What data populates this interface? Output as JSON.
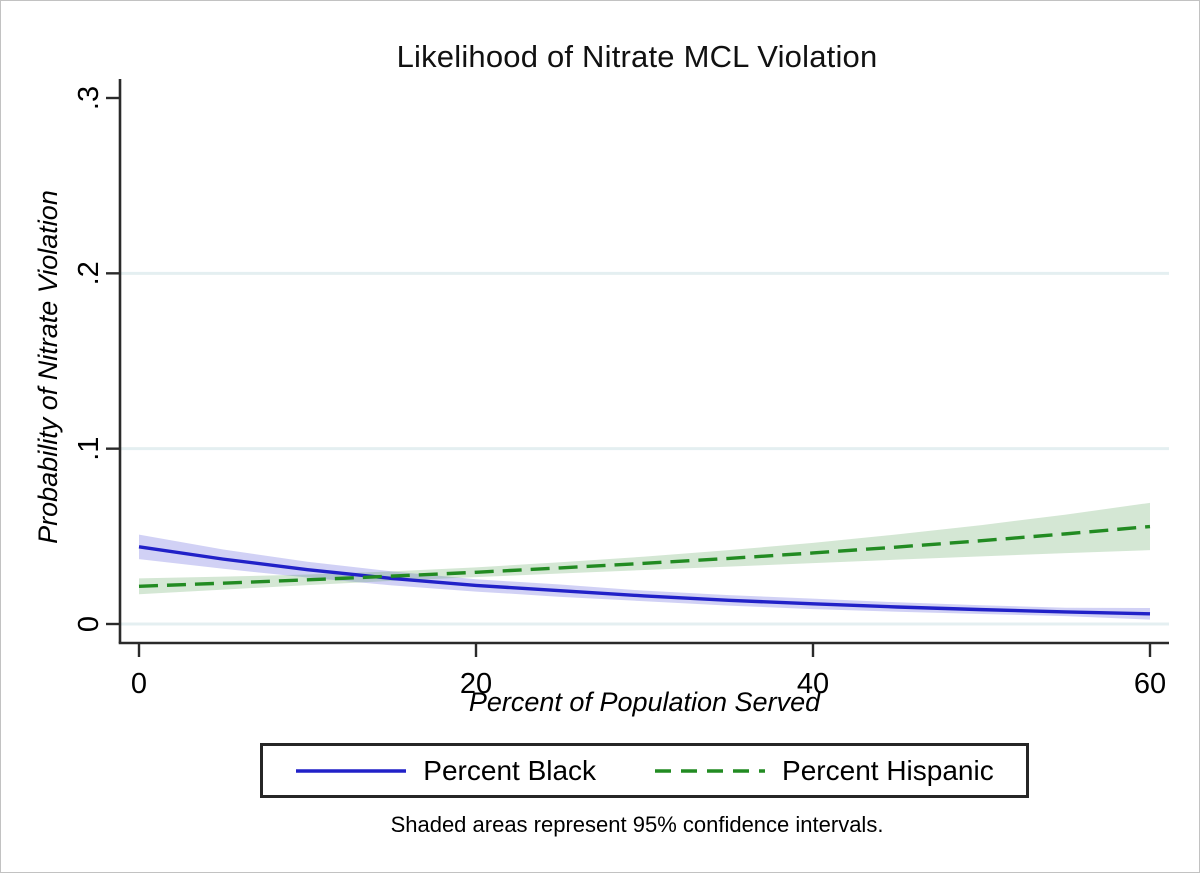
{
  "chart": {
    "title": "Likelihood of Nitrate MCL Violation",
    "ylabel": "Probability of Nitrate Violation",
    "xlabel": "Percent of Population Served",
    "note": "Shaded areas represent 95% confidence intervals.",
    "legend_items": [
      {
        "label": "Percent Black",
        "color": "#2121c8",
        "style": "solid"
      },
      {
        "label": "Percent Hispanic",
        "color": "#228b22",
        "style": "dashed"
      }
    ]
  },
  "chart_data": {
    "type": "line",
    "title": "Likelihood of Nitrate MCL Violation",
    "xlabel": "Percent of Population Served",
    "ylabel": "Probability of Nitrate Violation",
    "xlim": [
      0,
      60
    ],
    "ylim": [
      0,
      0.3
    ],
    "xticks": [
      0,
      20,
      40,
      60
    ],
    "xtick_labels": [
      "0",
      "20",
      "40",
      "60"
    ],
    "yticks": [
      0,
      0.1,
      0.2,
      0.3
    ],
    "ytick_labels": [
      "0",
      ".1",
      ".2",
      ".3"
    ],
    "gridline_values": [
      0,
      0.1,
      0.2
    ],
    "grid": true,
    "legend_position": "bottom",
    "note": "Shaded areas represent 95% confidence intervals.",
    "x": [
      0,
      5,
      10,
      15,
      20,
      25,
      30,
      35,
      40,
      45,
      50,
      55,
      60
    ],
    "series": [
      {
        "name": "Percent Black",
        "line_style": "solid",
        "color": "#2121c8",
        "ci_fill": "rgba(90,90,220,0.28)",
        "values": [
          0.044,
          0.037,
          0.031,
          0.026,
          0.022,
          0.019,
          0.016,
          0.0135,
          0.0115,
          0.0097,
          0.0082,
          0.0069,
          0.0058
        ],
        "ci_lower": [
          0.037,
          0.0315,
          0.0265,
          0.022,
          0.0185,
          0.0155,
          0.013,
          0.0105,
          0.0085,
          0.007,
          0.0057,
          0.0045,
          0.0025
        ],
        "ci_upper": [
          0.051,
          0.0425,
          0.0355,
          0.03,
          0.0255,
          0.0225,
          0.019,
          0.0165,
          0.0145,
          0.0124,
          0.0107,
          0.0093,
          0.0091
        ]
      },
      {
        "name": "Percent Hispanic",
        "line_style": "dashed",
        "color": "#228b22",
        "ci_fill": "rgba(60,145,60,0.22)",
        "values": [
          0.0215,
          0.0233,
          0.0252,
          0.0273,
          0.0295,
          0.032,
          0.0346,
          0.0374,
          0.0405,
          0.0439,
          0.0475,
          0.0514,
          0.0556
        ],
        "ci_lower": [
          0.017,
          0.0196,
          0.0222,
          0.0246,
          0.0267,
          0.0288,
          0.0308,
          0.0327,
          0.0347,
          0.0367,
          0.0386,
          0.0404,
          0.0421
        ],
        "ci_upper": [
          0.026,
          0.027,
          0.0282,
          0.03,
          0.0323,
          0.0352,
          0.0384,
          0.0421,
          0.0463,
          0.0511,
          0.0564,
          0.0624,
          0.0691
        ]
      }
    ],
    "axis_color": "#2a2a2a",
    "gridline_color": "#e4eff1"
  }
}
